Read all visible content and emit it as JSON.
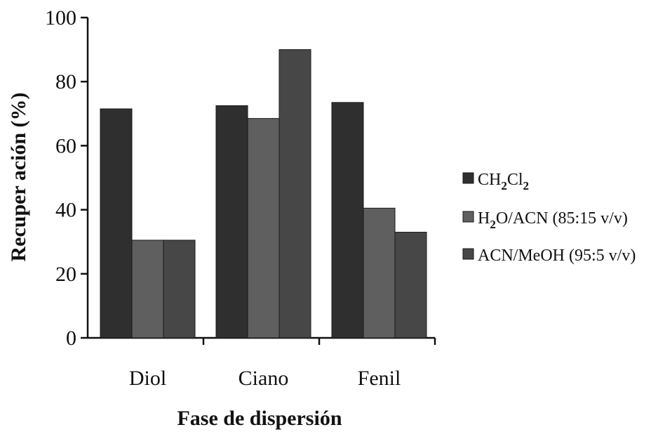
{
  "chart_data": {
    "type": "bar",
    "categories": [
      "Diol",
      "Ciano",
      "Fenil"
    ],
    "series": [
      {
        "name": "CH2Cl2",
        "name_parts": [
          [
            "CH",
            false
          ],
          [
            "2",
            true
          ],
          [
            "Cl",
            false
          ],
          [
            "2",
            true
          ]
        ],
        "values": [
          71.5,
          72.5,
          73.5
        ],
        "color": "#2f2f2f"
      },
      {
        "name": "H2O/ACN (85:15 v/v)",
        "name_parts": [
          [
            "H",
            false
          ],
          [
            "2",
            true
          ],
          [
            "O/ACN (85:15 v/v)",
            false
          ]
        ],
        "values": [
          30.5,
          68.5,
          40.5
        ],
        "color": "#5f5f5f"
      },
      {
        "name": "ACN/MeOH (95:5 v/v)",
        "name_parts": [
          [
            "ACN/MeOH (95:5 v/v)",
            false
          ]
        ],
        "values": [
          30.5,
          90.0,
          33.0
        ],
        "color": "#474747"
      }
    ],
    "xlabel": "Fase de dispersión",
    "ylabel": "Recuper ación (%)",
    "ylim": [
      0,
      100
    ],
    "yticks": [
      0,
      20,
      40,
      60,
      80,
      100
    ],
    "grid": false,
    "legend": "right"
  }
}
